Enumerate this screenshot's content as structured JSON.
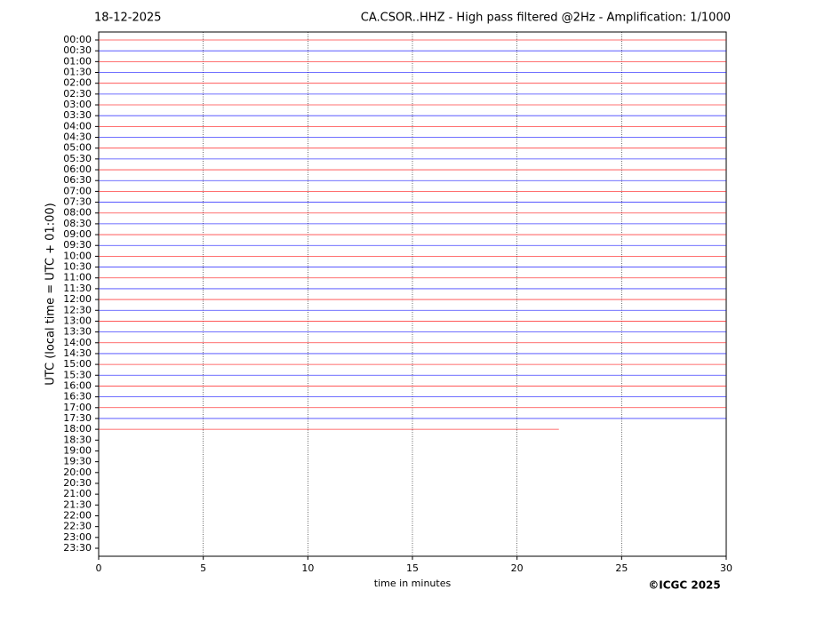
{
  "chart_data": {
    "type": "helicorder",
    "title_left": "18-12-2025",
    "title": "CA.CSOR..HHZ - High pass filtered @2Hz - Amplification: 1/1000",
    "ylabel": "UTC (local time = UTC + 01:00)",
    "xlabel": "time in minutes",
    "footer": "©ICGC 2025",
    "categories": [
      "00:00",
      "00:30",
      "01:00",
      "01:30",
      "02:00",
      "02:30",
      "03:00",
      "03:30",
      "04:00",
      "04:30",
      "05:00",
      "05:30",
      "06:00",
      "06:30",
      "07:00",
      "07:30",
      "08:00",
      "08:30",
      "09:00",
      "09:30",
      "10:00",
      "10:30",
      "11:00",
      "11:30",
      "12:00",
      "12:30",
      "13:00",
      "13:30",
      "14:00",
      "14:30",
      "15:00",
      "15:30",
      "16:00",
      "16:30",
      "17:00",
      "17:30",
      "18:00",
      "18:30",
      "19:00",
      "19:30",
      "20:00",
      "20:30",
      "21:00",
      "21:30",
      "22:00",
      "22:30",
      "23:00",
      "23:30"
    ],
    "trace_end": [
      30,
      30,
      30,
      30,
      30,
      30,
      30,
      30,
      30,
      30,
      30,
      30,
      30,
      30,
      30,
      30,
      30,
      30,
      30,
      30,
      30,
      30,
      30,
      30,
      30,
      30,
      30,
      30,
      30,
      30,
      30,
      30,
      30,
      30,
      30,
      30,
      22,
      null,
      null,
      null,
      null,
      null,
      null,
      null,
      null,
      null,
      null,
      null
    ],
    "colors": [
      "#ff0000",
      "#0000ff"
    ],
    "xlim": [
      0,
      30
    ],
    "xticks": [
      0,
      5,
      10,
      15,
      20,
      25,
      30
    ],
    "grid": true
  }
}
